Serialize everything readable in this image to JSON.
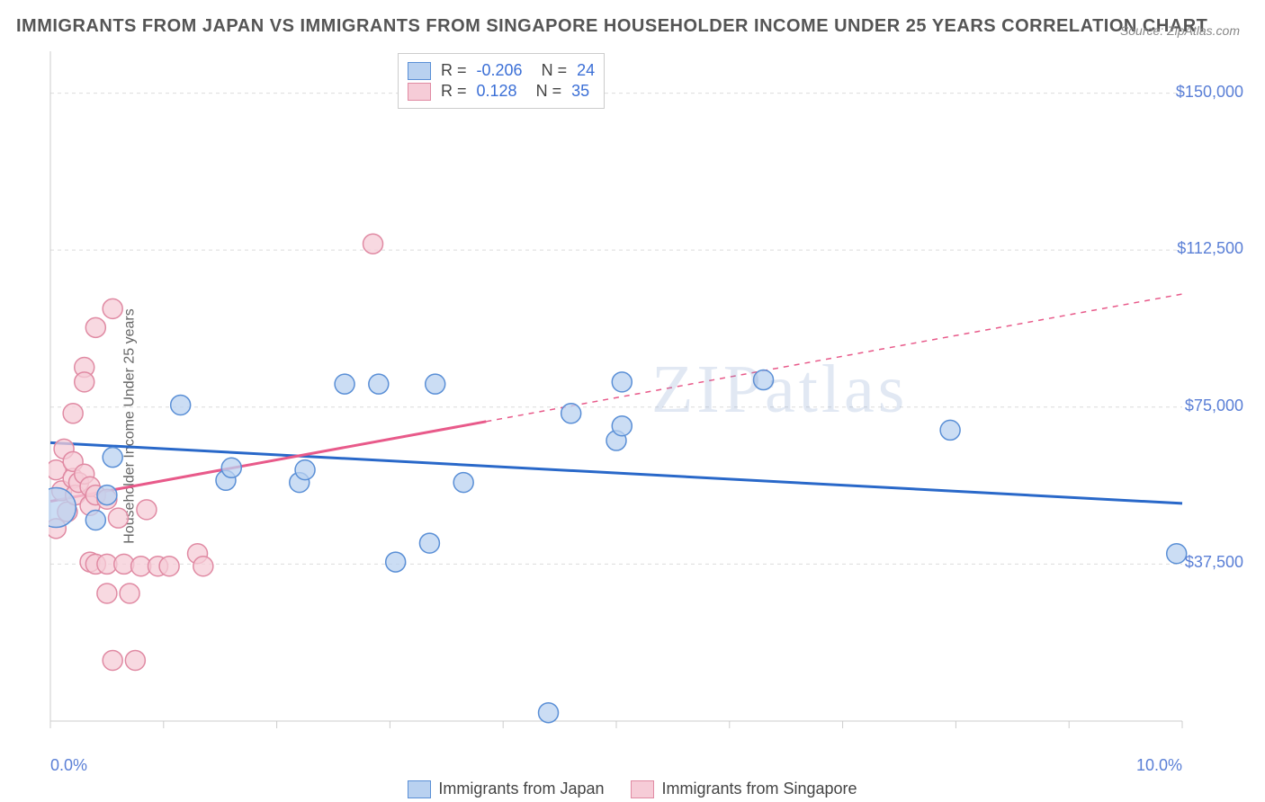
{
  "title": "IMMIGRANTS FROM JAPAN VS IMMIGRANTS FROM SINGAPORE HOUSEHOLDER INCOME UNDER 25 YEARS CORRELATION CHART",
  "source": "Source: ZipAtlas.com",
  "watermark": "ZIPatlas",
  "ylabel": "Householder Income Under 25 years",
  "chart": {
    "type": "scatter",
    "x_min": 0.0,
    "x_max": 10.0,
    "y_min": 0,
    "y_max": 160000,
    "grid_color": "#dcdcdc",
    "grid_dash": "4,4",
    "axis_color": "#cccccc",
    "background": "#ffffff",
    "y_ticks": [
      37500,
      75000,
      112500,
      150000
    ],
    "y_tick_labels": [
      "$37,500",
      "$75,000",
      "$112,500",
      "$150,000"
    ],
    "x_grid_ticks": [
      0,
      1,
      2,
      3,
      4,
      5,
      6,
      7,
      8,
      9,
      10
    ],
    "x_tick_labels_shown": [
      {
        "x": 0,
        "label": "0.0%"
      },
      {
        "x": 10,
        "label": "10.0%"
      }
    ],
    "marker_radius": 11,
    "marker_stroke_width": 1.5,
    "tick_label_color": "#5a7fd6",
    "tick_label_fontsize": 18
  },
  "series": [
    {
      "id": "japan",
      "name": "Immigrants from Japan",
      "fill": "#b9d1f0",
      "stroke": "#5a8fd6",
      "trend_color": "#2968c9",
      "trend_width": 3,
      "trend_dash": "none",
      "R": "-0.206",
      "N": "24",
      "trend": {
        "x1": 0,
        "y1": 66500,
        "x2": 10,
        "y2": 52000,
        "dashed_from_x": null
      },
      "points": [
        {
          "x": 0.05,
          "y": 51000,
          "r": 22
        },
        {
          "x": 0.55,
          "y": 63000
        },
        {
          "x": 0.5,
          "y": 54000
        },
        {
          "x": 0.4,
          "y": 48000
        },
        {
          "x": 1.15,
          "y": 75500
        },
        {
          "x": 1.55,
          "y": 57500
        },
        {
          "x": 1.6,
          "y": 60500
        },
        {
          "x": 2.2,
          "y": 57000
        },
        {
          "x": 2.25,
          "y": 60000
        },
        {
          "x": 2.6,
          "y": 80500
        },
        {
          "x": 2.9,
          "y": 80500
        },
        {
          "x": 3.05,
          "y": 38000
        },
        {
          "x": 3.35,
          "y": 42500
        },
        {
          "x": 3.4,
          "y": 80500
        },
        {
          "x": 3.65,
          "y": 57000
        },
        {
          "x": 4.4,
          "y": 2000
        },
        {
          "x": 4.6,
          "y": 73500
        },
        {
          "x": 5.05,
          "y": 81000
        },
        {
          "x": 5.0,
          "y": 67000
        },
        {
          "x": 5.05,
          "y": 70500
        },
        {
          "x": 6.3,
          "y": 81500
        },
        {
          "x": 7.95,
          "y": 69500
        },
        {
          "x": 9.95,
          "y": 40000
        }
      ]
    },
    {
      "id": "singapore",
      "name": "Immigrants from Singapore",
      "fill": "#f6ccd7",
      "stroke": "#e08aa3",
      "trend_color": "#e85a8a",
      "trend_width": 3,
      "trend_dash": "6,6",
      "R": "0.128",
      "N": "35",
      "trend": {
        "x1": 0,
        "y1": 52500,
        "x2": 10,
        "y2": 102000,
        "dashed_from_x": 3.85
      },
      "points": [
        {
          "x": 0.05,
          "y": 46000
        },
        {
          "x": 0.05,
          "y": 60000
        },
        {
          "x": 0.1,
          "y": 55000
        },
        {
          "x": 0.12,
          "y": 65000
        },
        {
          "x": 0.15,
          "y": 50000
        },
        {
          "x": 0.2,
          "y": 73500
        },
        {
          "x": 0.2,
          "y": 58000
        },
        {
          "x": 0.2,
          "y": 62000
        },
        {
          "x": 0.22,
          "y": 54000
        },
        {
          "x": 0.25,
          "y": 57000
        },
        {
          "x": 0.3,
          "y": 59000
        },
        {
          "x": 0.3,
          "y": 84500
        },
        {
          "x": 0.3,
          "y": 81000
        },
        {
          "x": 0.35,
          "y": 38000
        },
        {
          "x": 0.35,
          "y": 51500
        },
        {
          "x": 0.35,
          "y": 56000
        },
        {
          "x": 0.4,
          "y": 54000
        },
        {
          "x": 0.4,
          "y": 94000
        },
        {
          "x": 0.4,
          "y": 37500
        },
        {
          "x": 0.5,
          "y": 37500
        },
        {
          "x": 0.5,
          "y": 53000
        },
        {
          "x": 0.5,
          "y": 30500
        },
        {
          "x": 0.55,
          "y": 98500
        },
        {
          "x": 0.55,
          "y": 14500
        },
        {
          "x": 0.6,
          "y": 48500
        },
        {
          "x": 0.65,
          "y": 37500
        },
        {
          "x": 0.7,
          "y": 30500
        },
        {
          "x": 0.75,
          "y": 14500
        },
        {
          "x": 0.8,
          "y": 37000
        },
        {
          "x": 0.85,
          "y": 50500
        },
        {
          "x": 0.95,
          "y": 37000
        },
        {
          "x": 1.05,
          "y": 37000
        },
        {
          "x": 1.3,
          "y": 40000
        },
        {
          "x": 1.35,
          "y": 37000
        },
        {
          "x": 2.85,
          "y": 114000
        }
      ]
    }
  ],
  "legend_stats": {
    "R_label": "R =",
    "N_label": "N ="
  },
  "bottom_legend": [
    "japan",
    "singapore"
  ]
}
